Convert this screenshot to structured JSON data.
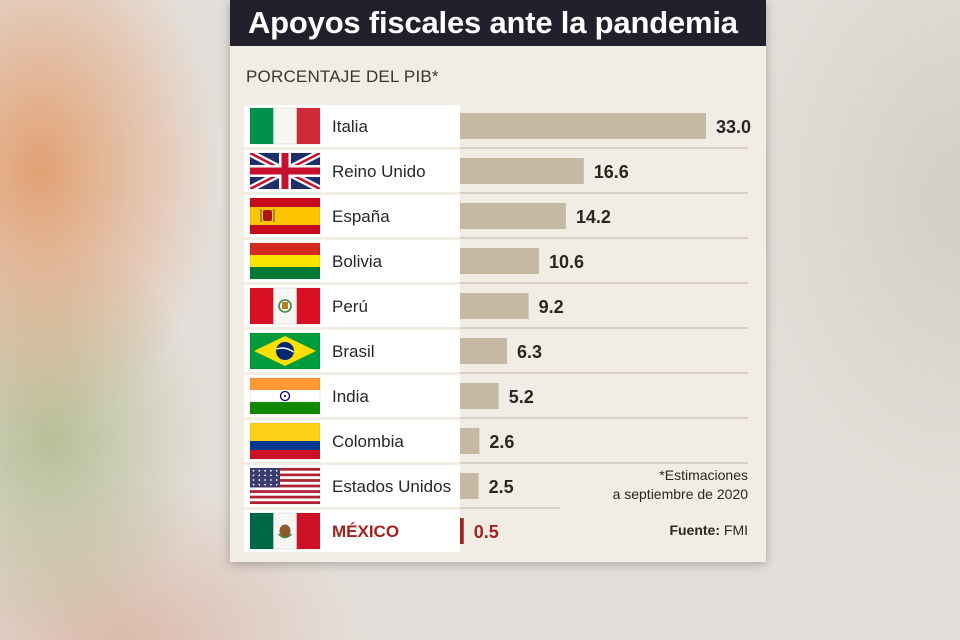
{
  "title": "Apoyos fiscales ante la pandemia",
  "subtitle": "PORCENTAJE DEL PIB*",
  "note_line1": "*Estimaciones",
  "note_line2": "a septiembre de 2020",
  "source_label": "Fuente:",
  "source_value": "FMI",
  "colors": {
    "title_bg": "#22202c",
    "card_bg": "#f1ece4",
    "bar": "#c5b9a4",
    "highlight": "#a4221e",
    "text": "#2a2722"
  },
  "chart_data": {
    "type": "bar",
    "orientation": "horizontal",
    "title": "Apoyos fiscales ante la pandemia",
    "subtitle": "PORCENTAJE DEL PIB*",
    "unit": "% del PIB",
    "xlim": [
      0,
      33
    ],
    "grid": false,
    "categories": [
      "Italia",
      "Reino Unido",
      "España",
      "Bolivia",
      "Perú",
      "Brasil",
      "India",
      "Colombia",
      "Estados Unidos",
      "MÉXICO"
    ],
    "values": [
      33.0,
      16.6,
      14.2,
      10.6,
      9.2,
      6.3,
      5.2,
      2.6,
      2.5,
      0.5
    ],
    "value_labels": [
      "33.0",
      "16.6",
      "14.2",
      "10.6",
      "9.2",
      "6.3",
      "5.2",
      "2.6",
      "2.5",
      "0.5"
    ],
    "flags": [
      "italy-flag-icon",
      "uk-flag-icon",
      "spain-flag-icon",
      "bolivia-flag-icon",
      "peru-flag-icon",
      "brazil-flag-icon",
      "india-flag-icon",
      "colombia-flag-icon",
      "usa-flag-icon",
      "mexico-flag-icon"
    ],
    "highlight": "MÉXICO"
  }
}
